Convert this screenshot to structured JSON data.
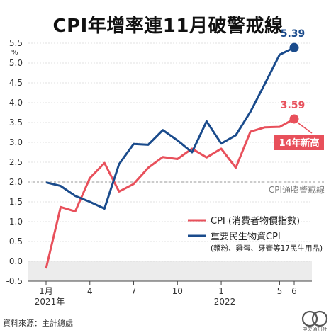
{
  "title": "CPI年增率連11月破警戒線",
  "source": "資料來源：主計總處",
  "logo_text": "中央通訊社",
  "chart_data": {
    "type": "line",
    "ylim": [
      -0.5,
      5.5
    ],
    "yunit": "%",
    "y_ticks": [
      "-0.5",
      "0.0",
      "0.5",
      "1.0",
      "1.5",
      "2.0",
      "2.5",
      "3.0",
      "3.5",
      "4.0",
      "4.5",
      "5.0",
      "5.5"
    ],
    "x": [
      "2021-01",
      "2021-02",
      "2021-03",
      "2021-04",
      "2021-05",
      "2021-06",
      "2021-07",
      "2021-08",
      "2021-09",
      "2021-10",
      "2021-11",
      "2021-12",
      "2022-01",
      "2022-02",
      "2022-03",
      "2022-04",
      "2022-05",
      "2022-06"
    ],
    "x_tick_labels": [
      {
        "index": 0,
        "label": "1月"
      },
      {
        "index": 3,
        "label": "4"
      },
      {
        "index": 6,
        "label": "7"
      },
      {
        "index": 9,
        "label": "10"
      },
      {
        "index": 12,
        "label": "1"
      },
      {
        "index": 16,
        "label": "5"
      },
      {
        "index": 17,
        "label": "6"
      }
    ],
    "year_labels": [
      {
        "index": 0,
        "label": "2021年"
      },
      {
        "index": 12,
        "label": "2022"
      }
    ],
    "series": [
      {
        "name": "CPI (消費者物價指數)",
        "color": "#e8505b",
        "values": [
          -0.18,
          1.37,
          1.26,
          2.1,
          2.48,
          1.76,
          1.95,
          2.36,
          2.63,
          2.58,
          2.84,
          2.62,
          2.84,
          2.36,
          3.27,
          3.38,
          3.39,
          3.59
        ],
        "end_label": "3.59"
      },
      {
        "name": "重要民生物資CPI",
        "sub_name": "(麵粉、雞蛋、牙膏等17民生用品)",
        "color": "#1a4b8c",
        "values": [
          1.99,
          1.9,
          1.65,
          1.5,
          1.33,
          2.45,
          2.96,
          2.94,
          3.31,
          3.05,
          2.75,
          3.53,
          2.97,
          3.18,
          3.77,
          4.48,
          5.21,
          5.39
        ],
        "end_label": "5.39"
      }
    ],
    "reference_line": {
      "value": 2.0,
      "label": "CPI通膨警戒線"
    },
    "annotation": "14年新高",
    "grid": true,
    "legend_position": "lower-right"
  }
}
